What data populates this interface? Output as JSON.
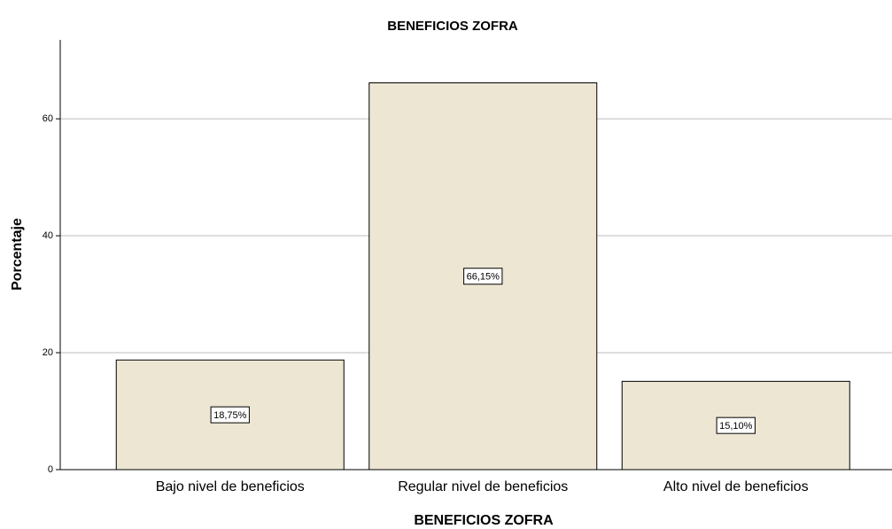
{
  "chart_data": {
    "type": "bar",
    "title": "BENEFICIOS ZOFRA",
    "x_label": "BENEFICIOS ZOFRA",
    "y_label": "Porcentaje",
    "categories": [
      "Bajo nivel de beneficios",
      "Regular nivel de beneficios",
      "Alto nivel de beneficios"
    ],
    "values": [
      18.75,
      66.15,
      15.1
    ],
    "value_labels": [
      "18,75%",
      "66,15%",
      "15,10%"
    ],
    "color": "#ede6d3",
    "ylim": [
      0,
      73.5
    ],
    "yticks": [
      0,
      20,
      40,
      60
    ],
    "grid": true
  }
}
